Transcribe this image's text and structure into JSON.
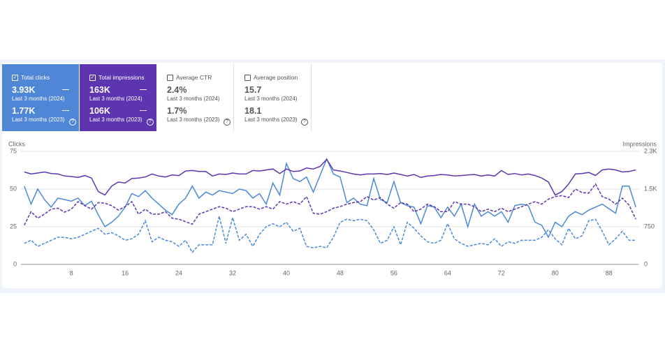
{
  "cards": [
    {
      "label": "Total clicks",
      "selected": true,
      "color": "#4f86d6",
      "rows": [
        {
          "value": "3.93K",
          "period": "Last 3 months (2024)"
        },
        {
          "value": "1.77K",
          "period": "Last 3 months (2023)"
        }
      ]
    },
    {
      "label": "Total impressions",
      "selected": true,
      "color": "#5e35b1",
      "rows": [
        {
          "value": "163K",
          "period": "Last 3 months (2024)"
        },
        {
          "value": "106K",
          "period": "Last 3 months (2023)"
        }
      ]
    },
    {
      "label": "Average CTR",
      "selected": false,
      "rows": [
        {
          "value": "2.4%",
          "period": "Last 3 months (2024)"
        },
        {
          "value": "1.7%",
          "period": "Last 3 months (2023)"
        }
      ]
    },
    {
      "label": "Average position",
      "selected": false,
      "rows": [
        {
          "value": "15.7",
          "period": "Last 3 months (2024)"
        },
        {
          "value": "18.1",
          "period": "Last 3 months (2023)"
        }
      ]
    }
  ],
  "chart_data": {
    "type": "line",
    "ylabel": "Clicks",
    "y2label": "Impressions",
    "x": [
      1,
      2,
      3,
      4,
      5,
      6,
      7,
      8,
      9,
      10,
      11,
      12,
      13,
      14,
      15,
      16,
      17,
      18,
      19,
      20,
      21,
      22,
      23,
      24,
      25,
      26,
      27,
      28,
      29,
      30,
      31,
      32,
      33,
      34,
      35,
      36,
      37,
      38,
      39,
      40,
      41,
      42,
      43,
      44,
      45,
      46,
      47,
      48,
      49,
      50,
      51,
      52,
      53,
      54,
      55,
      56,
      57,
      58,
      59,
      60,
      61,
      62,
      63,
      64,
      65,
      66,
      67,
      68,
      69,
      70,
      71,
      72,
      73,
      74,
      75,
      76,
      77,
      78,
      79,
      80,
      81,
      82,
      83,
      84,
      85,
      86,
      87,
      88,
      89,
      90,
      91,
      92
    ],
    "xlim": [
      0.5,
      92.5
    ],
    "xticks": [
      8,
      16,
      24,
      32,
      40,
      48,
      56,
      64,
      72,
      80,
      88
    ],
    "ylim": [
      0,
      75
    ],
    "yticks": [
      0,
      25,
      50,
      75
    ],
    "y2lim": [
      0,
      2250
    ],
    "y2ticks": [
      0,
      750,
      {
        "value": 1500,
        "label": "1.5K"
      },
      {
        "value": 2250,
        "label": "2.3K"
      }
    ],
    "grid": true,
    "series": [
      {
        "color": "#4a89d8",
        "style": "solid",
        "values": [
          52,
          40,
          50,
          43,
          38,
          44,
          43,
          42,
          44,
          39,
          42,
          33,
          25,
          28,
          32,
          38,
          47,
          45,
          49,
          44,
          40,
          36,
          33,
          40,
          44,
          52,
          44,
          48,
          46,
          49,
          48,
          47,
          50,
          49,
          44,
          47,
          40,
          54,
          46,
          67,
          57,
          55,
          58,
          48,
          59,
          70,
          60,
          58,
          41,
          44,
          40,
          39,
          57,
          43,
          41,
          55,
          41,
          39,
          38,
          27,
          39,
          38,
          31,
          38,
          32,
          40,
          25,
          40,
          32,
          35,
          32,
          35,
          28,
          39,
          40,
          39,
          28,
          26,
          18,
          28,
          25,
          32,
          35,
          33,
          36,
          38,
          40,
          37,
          34,
          52,
          52,
          38
        ]
      },
      {
        "color": "#4a89d8",
        "style": "dashed",
        "values": [
          14,
          16,
          12,
          14,
          16,
          18,
          18,
          17,
          18,
          20,
          22,
          24,
          20,
          21,
          19,
          16,
          17,
          20,
          29,
          15,
          18,
          16,
          15,
          12,
          16,
          8,
          13,
          13,
          13,
          32,
          14,
          31,
          16,
          20,
          12,
          20,
          25,
          27,
          25,
          28,
          22,
          24,
          12,
          11,
          12,
          11,
          18,
          28,
          30,
          29,
          30,
          29,
          23,
          14,
          16,
          25,
          13,
          28,
          24,
          19,
          15,
          14,
          16,
          27,
          17,
          14,
          12,
          13,
          14,
          13,
          17,
          12,
          15,
          14,
          16,
          16,
          16,
          18,
          23,
          17,
          13,
          24,
          17,
          19,
          29,
          30,
          22,
          13,
          17,
          22,
          16,
          16
        ]
      },
      {
        "color": "#5e35b1",
        "style": "solid",
        "axis": "y2",
        "values": [
          1840,
          1800,
          1820,
          1840,
          1810,
          1800,
          1760,
          1750,
          1730,
          1770,
          1720,
          1450,
          1380,
          1560,
          1640,
          1620,
          1710,
          1720,
          1740,
          1800,
          1760,
          1740,
          1780,
          1770,
          1860,
          1870,
          1850,
          1850,
          1760,
          1800,
          1790,
          1820,
          1800,
          1800,
          1870,
          1860,
          1880,
          1900,
          1810,
          1900,
          1850,
          1860,
          1920,
          1900,
          1950,
          2090,
          1880,
          1860,
          1830,
          1800,
          1780,
          1800,
          1800,
          1810,
          1790,
          1820,
          1790,
          1760,
          1790,
          1730,
          1760,
          1770,
          1790,
          1780,
          1760,
          1770,
          1780,
          1790,
          1760,
          1780,
          1760,
          1870,
          1790,
          1810,
          1780,
          1800,
          1770,
          1720,
          1640,
          1380,
          1450,
          1600,
          1800,
          1810,
          1830,
          1770,
          1880,
          1900,
          1880,
          1840,
          1850,
          1880
        ]
      },
      {
        "color": "#5e35b1",
        "style": "dashed",
        "axis": "y2",
        "values": [
          780,
          1050,
          920,
          1000,
          1100,
          1120,
          1040,
          1100,
          1250,
          1170,
          1100,
          1230,
          1220,
          1170,
          1080,
          1150,
          1250,
          1000,
          1100,
          1000,
          1000,
          1050,
          920,
          900,
          850,
          800,
          1000,
          1050,
          1100,
          1150,
          1120,
          1050,
          1100,
          1150,
          1150,
          1100,
          1150,
          1100,
          1250,
          1200,
          1250,
          1200,
          1350,
          1020,
          1000,
          1050,
          1120,
          1150,
          1200,
          1230,
          1250,
          1350,
          1280,
          1330,
          1200,
          1120,
          1230,
          1200,
          1050,
          1100,
          1200,
          1150,
          1050,
          1050,
          1250,
          1200,
          1200,
          1150,
          1050,
          1100,
          1050,
          1120,
          1050,
          1100,
          1150,
          1200,
          1250,
          1200,
          1300,
          1350,
          1370,
          1330,
          1500,
          1430,
          1420,
          1600,
          1350,
          1300,
          1200,
          1320,
          1180,
          900
        ]
      }
    ]
  }
}
